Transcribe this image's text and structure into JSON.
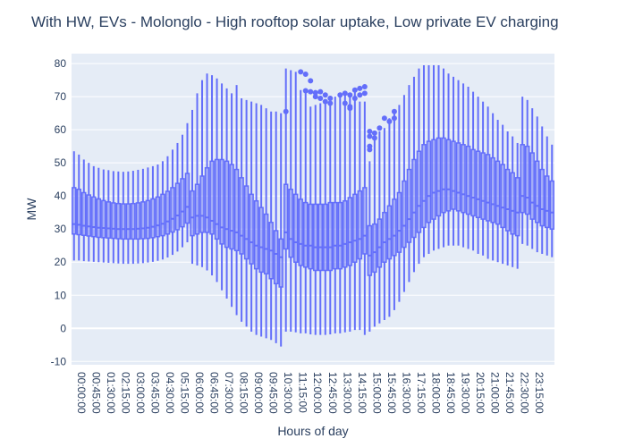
{
  "chart_data": {
    "type": "box",
    "title": "With HW, EVs - Molonglo - High rooftop solar uptake, Low private EV charging",
    "xlabel": "Hours of day",
    "ylabel": "MW",
    "ylim": [
      -11,
      83
    ],
    "y_ticks": [
      -10,
      0,
      10,
      20,
      30,
      40,
      50,
      60,
      70,
      80
    ],
    "x_tick_labels": [
      "00:00:00",
      "00:45:00",
      "01:30:00",
      "02:15:00",
      "03:00:00",
      "03:45:00",
      "04:30:00",
      "05:15:00",
      "06:00:00",
      "06:45:00",
      "07:30:00",
      "08:15:00",
      "09:00:00",
      "09:45:00",
      "10:30:00",
      "11:15:00",
      "12:00:00",
      "12:45:00",
      "13:30:00",
      "14:15:00",
      "15:00:00",
      "15:45:00",
      "16:30:00",
      "17:15:00",
      "18:00:00",
      "18:45:00",
      "19:30:00",
      "20:15:00",
      "21:00:00",
      "21:45:00",
      "22:30:00",
      "23:15:00"
    ],
    "interval_minutes": 15,
    "series_color": "#636efa",
    "background": "#e5ecf6",
    "grid": true,
    "boxes": {
      "lowerfence": [
        20.5,
        20.5,
        20.3,
        20.2,
        20.1,
        20.0,
        19.9,
        19.8,
        19.7,
        19.6,
        19.5,
        19.5,
        19.5,
        19.6,
        19.7,
        19.9,
        20.1,
        20.4,
        20.8,
        21.4,
        22.2,
        23.2,
        24.5,
        26.0,
        19.5,
        19.0,
        18.5,
        17.5,
        16.0,
        14.0,
        11.5,
        9.0,
        6.5,
        4.0,
        2.0,
        0.5,
        -1.0,
        -2.0,
        -2.5,
        -3.0,
        -3.5,
        -4.5,
        -5.5,
        -1.0,
        -1.0,
        -1.2,
        -1.5,
        -1.5,
        -1.8,
        -2.0,
        -2.0,
        -2.0,
        -1.8,
        -1.5,
        -1.5,
        -1.2,
        -1.0,
        -0.5,
        -0.5,
        -2.0,
        -1.0,
        0.5,
        1.5,
        2.5,
        3.5,
        5.5,
        8.0,
        11.0,
        14.0,
        17.0,
        19.5,
        21.5,
        22.5,
        23.5,
        24.0,
        24.5,
        25.0,
        25.0,
        25.0,
        24.5,
        24.0,
        23.5,
        22.5,
        22.0,
        21.0,
        20.5,
        20.0,
        19.5,
        19.0,
        18.5,
        18.0,
        25.5,
        25.0,
        24.0,
        23.0,
        22.5,
        22.0,
        21.5
      ],
      "q1": [
        28.5,
        28.3,
        28.1,
        27.9,
        27.7,
        27.5,
        27.4,
        27.3,
        27.2,
        27.1,
        27.0,
        27.0,
        27.0,
        27.0,
        27.1,
        27.2,
        27.4,
        27.7,
        28.0,
        28.5,
        29.1,
        29.8,
        30.7,
        31.8,
        28.0,
        28.5,
        29.0,
        29.0,
        28.5,
        27.0,
        25.5,
        24.5,
        24.0,
        23.5,
        22.5,
        21.0,
        19.5,
        18.0,
        17.0,
        16.5,
        15.0,
        13.5,
        12.5,
        24.0,
        21.5,
        20.0,
        19.0,
        18.5,
        18.0,
        17.5,
        17.5,
        17.5,
        17.5,
        18.0,
        18.0,
        18.5,
        19.0,
        20.0,
        21.0,
        22.5,
        16.0,
        17.0,
        18.5,
        20.0,
        21.0,
        22.0,
        23.0,
        24.5,
        26.0,
        27.5,
        29.0,
        30.5,
        32.0,
        33.0,
        34.0,
        35.0,
        35.5,
        36.0,
        35.5,
        35.0,
        34.5,
        34.0,
        33.5,
        33.0,
        32.5,
        32.0,
        31.5,
        30.5,
        29.5,
        28.5,
        28.0,
        35.0,
        34.5,
        33.0,
        32.0,
        31.0,
        30.5,
        30.0
      ],
      "median": [
        31.5,
        31.3,
        31.0,
        30.8,
        30.6,
        30.4,
        30.3,
        30.2,
        30.1,
        30.0,
        30.0,
        30.0,
        30.0,
        30.1,
        30.2,
        30.4,
        30.7,
        31.1,
        31.6,
        32.3,
        33.1,
        34.1,
        35.3,
        36.7,
        33.5,
        34.0,
        34.0,
        33.5,
        32.5,
        31.5,
        30.5,
        30.0,
        29.5,
        29.0,
        28.0,
        27.0,
        26.0,
        25.0,
        24.5,
        24.0,
        23.5,
        22.5,
        21.5,
        29.0,
        27.0,
        26.0,
        25.5,
        25.0,
        25.0,
        24.5,
        24.5,
        24.5,
        24.5,
        25.0,
        25.0,
        25.5,
        26.0,
        26.5,
        27.0,
        28.0,
        22.0,
        23.0,
        24.5,
        26.0,
        27.0,
        28.0,
        29.5,
        31.0,
        33.0,
        35.0,
        37.0,
        38.5,
        40.0,
        41.0,
        41.5,
        42.0,
        42.0,
        41.5,
        41.0,
        40.5,
        40.0,
        39.5,
        39.0,
        38.5,
        38.0,
        37.5,
        37.0,
        36.5,
        36.0,
        35.5,
        35.0,
        40.0,
        39.5,
        38.0,
        37.0,
        36.0,
        35.5,
        35.0
      ],
      "q3": [
        42.5,
        42.0,
        41.0,
        40.3,
        39.7,
        39.1,
        38.6,
        38.2,
        37.9,
        37.7,
        37.6,
        37.6,
        37.7,
        37.9,
        38.2,
        38.6,
        39.1,
        39.7,
        40.5,
        41.4,
        42.5,
        43.8,
        45.2,
        46.8,
        41.5,
        43.5,
        46.0,
        48.5,
        50.5,
        51.0,
        51.0,
        50.5,
        49.5,
        48.0,
        45.5,
        43.0,
        40.5,
        38.5,
        36.5,
        34.5,
        32.0,
        29.5,
        27.0,
        43.5,
        42.0,
        40.5,
        39.0,
        38.0,
        37.5,
        37.5,
        37.5,
        37.5,
        38.0,
        38.0,
        38.0,
        38.5,
        39.5,
        40.5,
        41.5,
        42.5,
        31.0,
        31.5,
        33.0,
        35.0,
        37.0,
        39.0,
        41.0,
        44.5,
        48.0,
        51.0,
        53.5,
        55.5,
        56.5,
        57.0,
        57.5,
        57.5,
        57.0,
        56.5,
        56.0,
        55.5,
        55.0,
        54.0,
        53.5,
        53.0,
        52.5,
        51.5,
        50.5,
        49.5,
        48.0,
        47.0,
        45.5,
        55.5,
        55.0,
        53.0,
        50.5,
        48.0,
        46.0,
        44.5
      ],
      "upperfence": [
        53.5,
        52.5,
        51.0,
        50.0,
        49.0,
        48.5,
        48.0,
        47.8,
        47.5,
        47.4,
        47.3,
        47.4,
        47.6,
        47.9,
        48.2,
        48.6,
        49.0,
        49.5,
        50.5,
        52.0,
        54.0,
        56.0,
        58.5,
        62.0,
        66.0,
        71.0,
        75.0,
        77.0,
        76.5,
        75.5,
        74.0,
        72.5,
        71.0,
        73.5,
        69.5,
        69.0,
        68.5,
        68.0,
        67.5,
        66.5,
        65.5,
        65.5,
        65.0,
        78.5,
        78.0,
        77.5,
        72.0,
        72.0,
        67.0,
        67.5,
        68.0,
        68.5,
        69.0,
        70.0,
        70.5,
        71.0,
        71.0,
        72.0,
        68.5,
        68.5,
        50.5,
        58.0,
        59.5,
        60.5,
        63.5,
        65.5,
        67.5,
        70.5,
        73.5,
        76.0,
        78.5,
        79.5,
        79.5,
        79.5,
        79.5,
        78.5,
        77.0,
        76.0,
        75.0,
        74.0,
        73.0,
        71.5,
        70.0,
        68.5,
        67.0,
        65.0,
        63.0,
        61.5,
        59.5,
        58.0,
        56.0,
        70.0,
        69.0,
        66.5,
        64.0,
        61.0,
        58.0,
        55.5
      ]
    },
    "outliers": [
      {
        "x": "10:45:00",
        "y": 65.5
      },
      {
        "x": "11:30:00",
        "y": 77.5
      },
      {
        "x": "11:45:00",
        "y": 76.8
      },
      {
        "x": "11:45:00",
        "y": 71.8
      },
      {
        "x": "12:00:00",
        "y": 74.8
      },
      {
        "x": "12:00:00",
        "y": 71.5
      },
      {
        "x": "12:15:00",
        "y": 71.2
      },
      {
        "x": "12:15:00",
        "y": 70.0
      },
      {
        "x": "12:30:00",
        "y": 71.5
      },
      {
        "x": "12:30:00",
        "y": 69.5
      },
      {
        "x": "12:45:00",
        "y": 70.5
      },
      {
        "x": "12:45:00",
        "y": 68.5
      },
      {
        "x": "13:00:00",
        "y": 69.5
      },
      {
        "x": "13:00:00",
        "y": 68.0
      },
      {
        "x": "13:30:00",
        "y": 70.5
      },
      {
        "x": "13:45:00",
        "y": 71.0
      },
      {
        "x": "13:45:00",
        "y": 68.0
      },
      {
        "x": "14:00:00",
        "y": 70.5
      },
      {
        "x": "14:00:00",
        "y": 67.0
      },
      {
        "x": "14:00:00",
        "y": 66.5
      },
      {
        "x": "14:15:00",
        "y": 72.0
      },
      {
        "x": "14:15:00",
        "y": 69.5
      },
      {
        "x": "14:30:00",
        "y": 72.5
      },
      {
        "x": "14:30:00",
        "y": 70.5
      },
      {
        "x": "14:45:00",
        "y": 73.0
      },
      {
        "x": "14:45:00",
        "y": 71.0
      },
      {
        "x": "15:00:00",
        "y": 59.5
      },
      {
        "x": "15:00:00",
        "y": 58.0
      },
      {
        "x": "15:00:00",
        "y": 55.0
      },
      {
        "x": "15:00:00",
        "y": 54.0
      },
      {
        "x": "15:15:00",
        "y": 59.0
      },
      {
        "x": "15:15:00",
        "y": 57.5
      },
      {
        "x": "15:30:00",
        "y": 60.5
      },
      {
        "x": "15:45:00",
        "y": 63.5
      },
      {
        "x": "16:00:00",
        "y": 62.5
      },
      {
        "x": "16:15:00",
        "y": 63.5
      },
      {
        "x": "16:15:00",
        "y": 65.5
      }
    ]
  }
}
